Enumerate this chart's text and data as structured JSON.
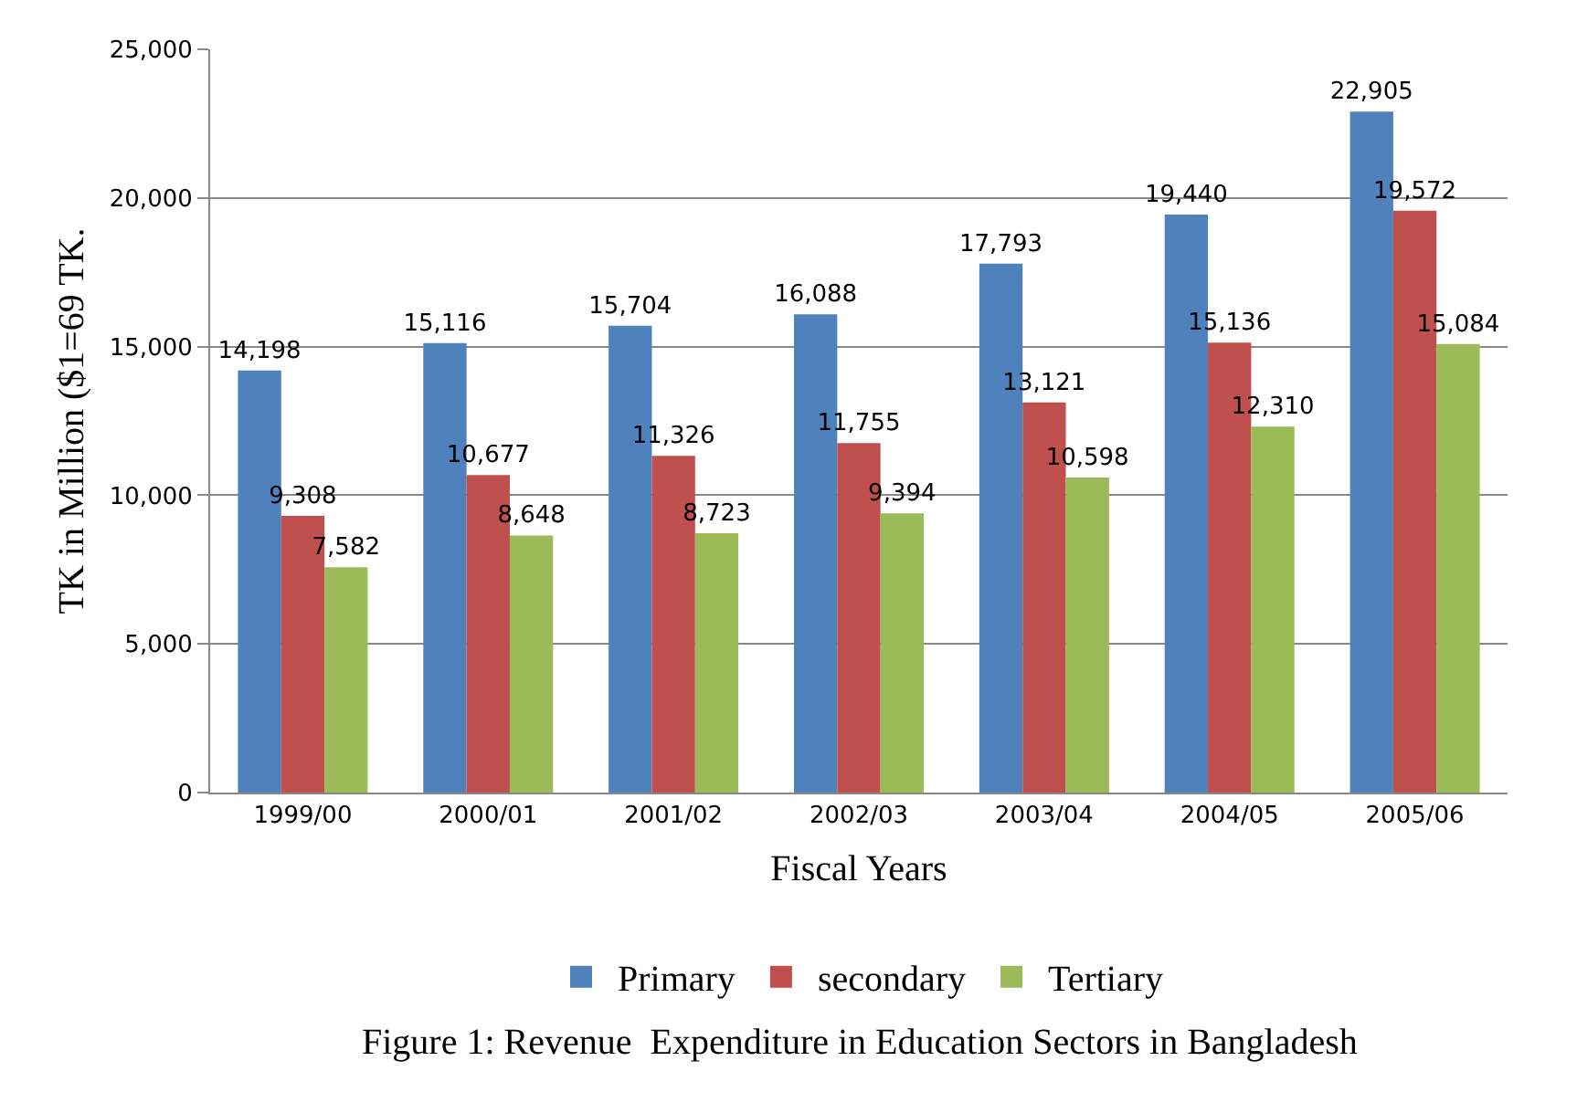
{
  "chart_data": {
    "type": "bar",
    "categories": [
      "1999/00",
      "2000/01",
      "2001/02",
      "2002/03",
      "2003/04",
      "2004/05",
      "2005/06"
    ],
    "series": [
      {
        "name": "Primary",
        "color": "#4f81bd",
        "values": [
          14198,
          15116,
          15704,
          16088,
          17793,
          19440,
          22905
        ],
        "value_labels": [
          "14,198",
          "15,116",
          "15,704",
          "16,088",
          "17,793",
          "19,440",
          "22,905"
        ]
      },
      {
        "name": "secondary",
        "color": "#c0504d",
        "values": [
          9308,
          10677,
          11326,
          11755,
          13121,
          15136,
          19572
        ],
        "value_labels": [
          "9,308",
          "10,677",
          "11,326",
          "11,755",
          "13,121",
          "15,136",
          "19,572"
        ]
      },
      {
        "name": "Tertiary",
        "color": "#9bbb59",
        "values": [
          7582,
          8648,
          8723,
          9394,
          10598,
          12310,
          15084
        ],
        "value_labels": [
          "7,582",
          "8,648",
          "8,723",
          "9,394",
          "10,598",
          "12,310",
          "15,084"
        ]
      }
    ],
    "xlabel": "Fiscal Years",
    "ylabel": "TK in Million ($1=69 TK.",
    "ylim": [
      0,
      25000
    ],
    "yticks": [
      0,
      {
        "value": 5000,
        "label": "5,000"
      },
      {
        "value": 10000,
        "label": "10,000"
      },
      {
        "value": 15000,
        "label": "15,000"
      },
      {
        "value": 20000,
        "label": "20,000"
      },
      {
        "value": 25000,
        "label": "25,000"
      }
    ],
    "grid": "y",
    "legend": "bottom",
    "annotations": [
      "Figure 1: Revenue  Expenditure in Education Sectors in Bangladesh"
    ]
  }
}
